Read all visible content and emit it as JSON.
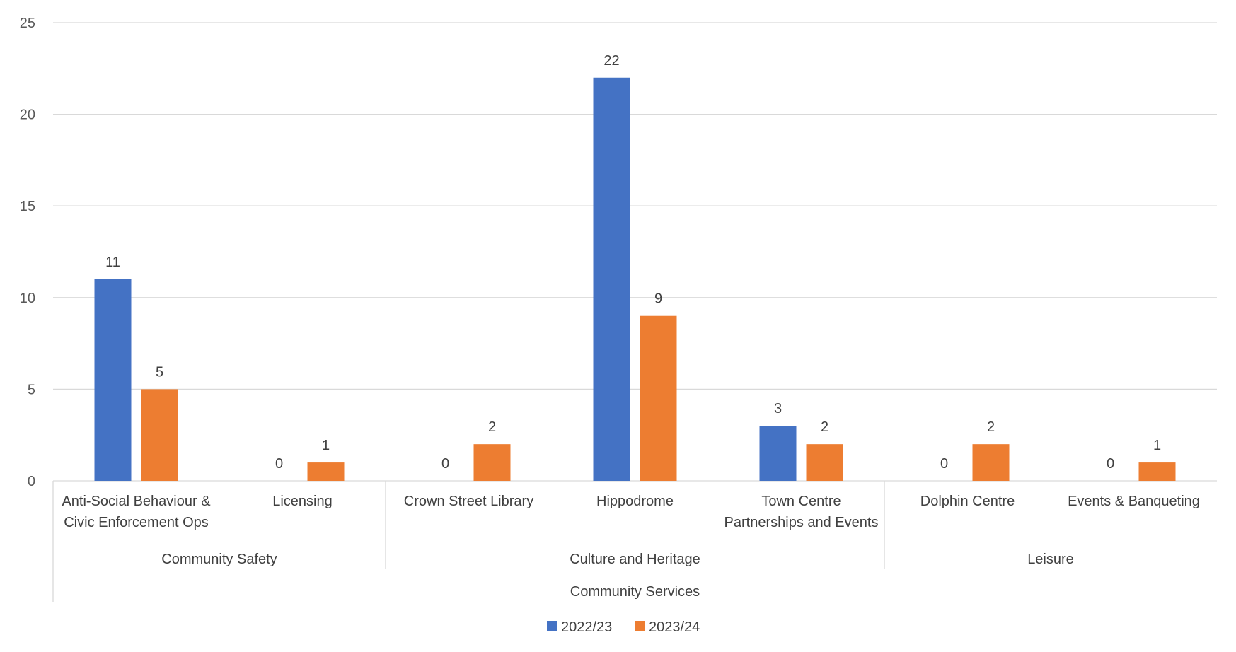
{
  "chart_data": {
    "type": "bar",
    "ylim": [
      0,
      25
    ],
    "yticks": [
      0,
      5,
      10,
      15,
      20,
      25
    ],
    "grid": true,
    "legend_position": "bottom",
    "categories": [
      [
        "Anti-Social Behaviour &",
        "Civic Enforcement Ops"
      ],
      [
        "Licensing"
      ],
      [
        "Crown Street Library"
      ],
      [
        "Hippodrome"
      ],
      [
        "Town Centre",
        "Partnerships and Events"
      ],
      [
        "Dolphin Centre"
      ],
      [
        "Events & Banqueting"
      ]
    ],
    "groups": [
      {
        "label": "Community Safety",
        "span": [
          0,
          1
        ]
      },
      {
        "label": "Culture and Heritage",
        "span": [
          2,
          4
        ]
      },
      {
        "label": "Leisure",
        "span": [
          5,
          6
        ]
      }
    ],
    "top_group": {
      "label": "Community Services",
      "span": [
        0,
        6
      ]
    },
    "series": [
      {
        "name": "2022/23",
        "color": "#4472C4",
        "values": [
          11,
          0,
          0,
          22,
          3,
          0,
          0
        ]
      },
      {
        "name": "2023/24",
        "color": "#ED7D31",
        "values": [
          5,
          1,
          2,
          9,
          2,
          2,
          1
        ]
      }
    ]
  }
}
